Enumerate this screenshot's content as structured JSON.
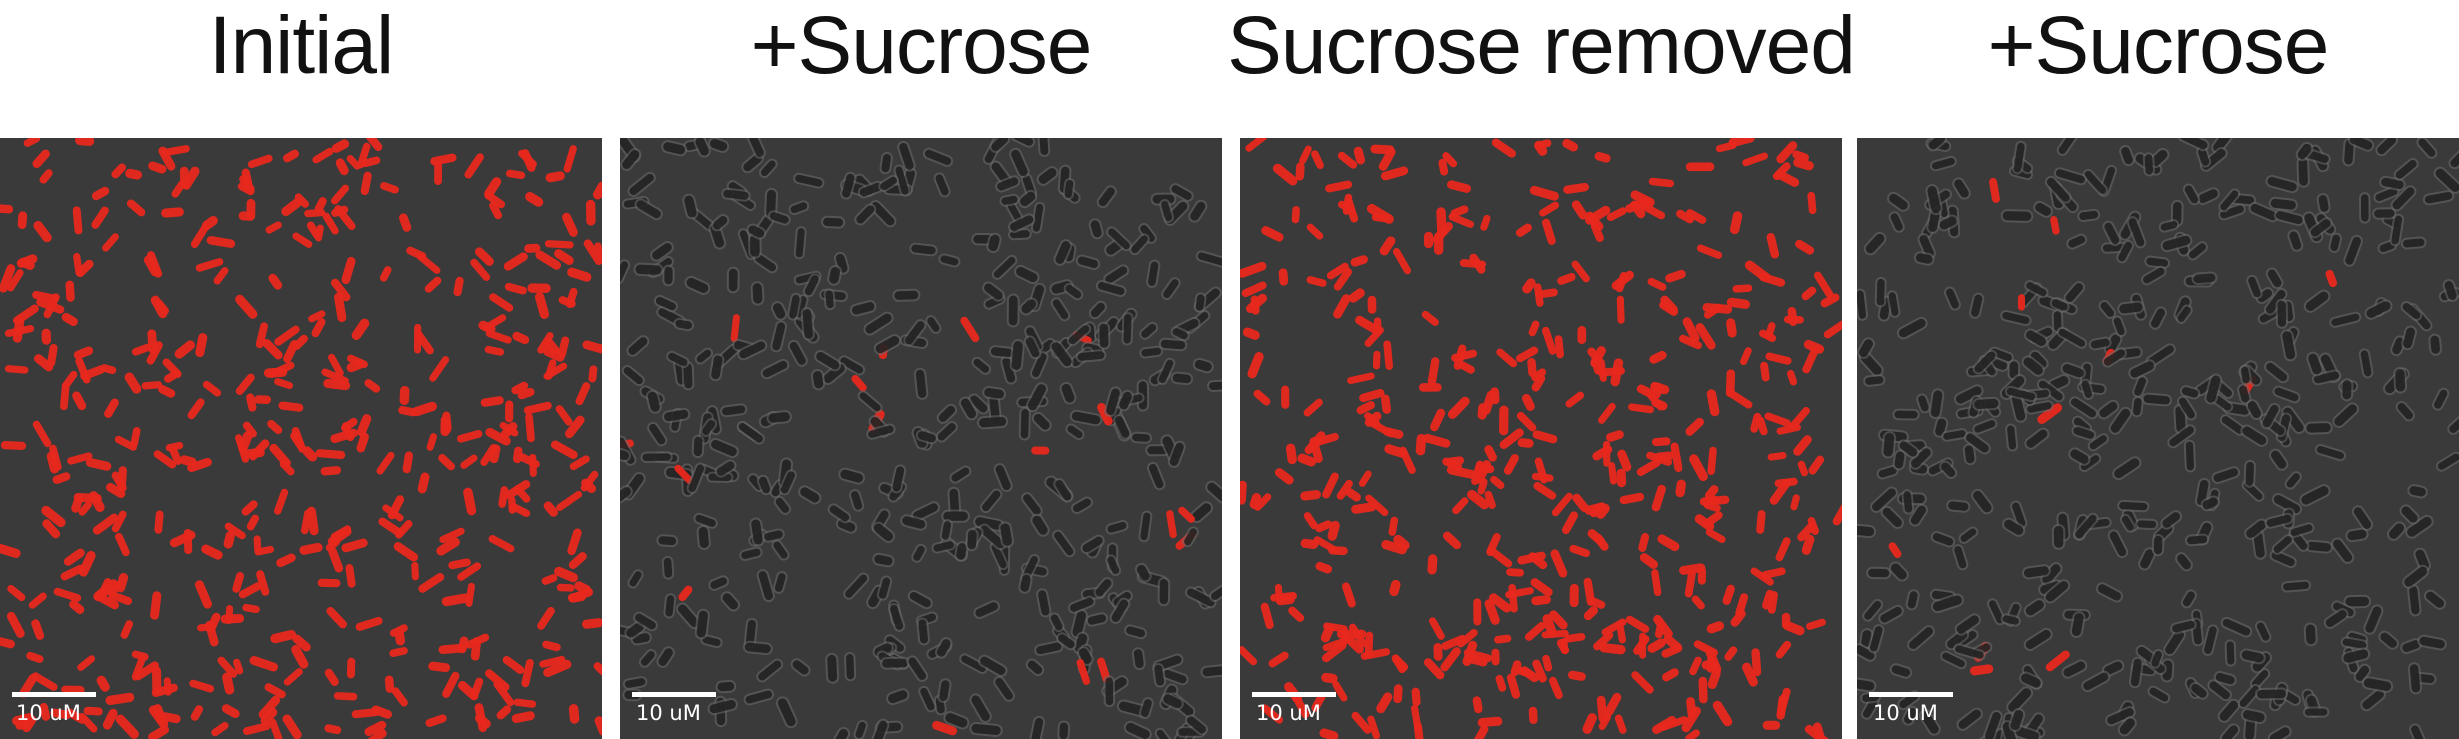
{
  "panels": [
    {
      "title": "Initial",
      "scale_label": "10 uM",
      "red_fraction": 1.0
    },
    {
      "title": "+Sucrose",
      "scale_label": "10 uM",
      "red_fraction": 0.05
    },
    {
      "title": "Sucrose removed",
      "scale_label": "10 uM",
      "red_fraction": 1.0
    },
    {
      "title": "+Sucrose",
      "scale_label": "10 uM",
      "red_fraction": 0.05
    }
  ],
  "colors": {
    "background": "#3a3a3a",
    "cell_red": "#e8281e",
    "cell_dark": "#1e1e1e",
    "cell_halo": "#6a6a6a",
    "scalebar": "#ffffff"
  }
}
